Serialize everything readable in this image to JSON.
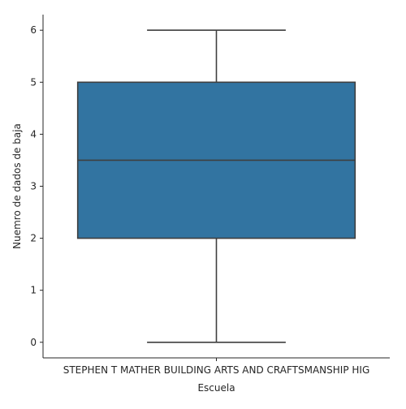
{
  "chart_data": {
    "type": "box",
    "title": "",
    "xlabel": "Escuela",
    "ylabel": "Nuemro de dados de baja",
    "categories": [
      "STEPHEN T MATHER BUILDING ARTS AND CRAFTSMANSHIP HIG"
    ],
    "boxes": [
      {
        "category": "STEPHEN T MATHER BUILDING ARTS AND CRAFTSMANSHIP HIG",
        "whisker_low": 0,
        "q1": 2,
        "median": 3.5,
        "q3": 5,
        "whisker_high": 6
      }
    ],
    "yticks": [
      0,
      1,
      2,
      3,
      4,
      5,
      6
    ],
    "ylim": [
      -0.3,
      6.3
    ],
    "grid": false,
    "legend": "none",
    "colors": {
      "box_fill": "#3274a1",
      "box_line": "#3f3f3f",
      "axis": "#262626"
    }
  }
}
